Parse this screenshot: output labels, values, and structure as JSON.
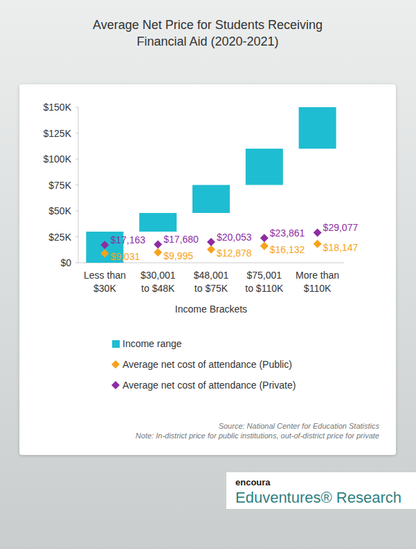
{
  "chart_data": {
    "type": "bar",
    "title": "Average Net Price for Students Receiving\nFinancial Aid (2020-2021)",
    "x_label": "Income Brackets",
    "categories": [
      "Less than\n$30K",
      "$30,001\nto $48K",
      "$48,001\nto $75K",
      "$75,001\nto $110K",
      "More than\n$110K"
    ],
    "ylim": [
      0,
      150000
    ],
    "yticks": [
      {
        "value": 0,
        "label": "$0"
      },
      {
        "value": 25000,
        "label": "$25K"
      },
      {
        "value": 50000,
        "label": "$50K"
      },
      {
        "value": 75000,
        "label": "$75K"
      },
      {
        "value": 100000,
        "label": "$100K"
      },
      {
        "value": 125000,
        "label": "$125K"
      },
      {
        "value": 150000,
        "label": "$150K"
      }
    ],
    "grid": false,
    "series": [
      {
        "name": "Income range",
        "type": "bar",
        "color": "#1fbdd1",
        "low": [
          0,
          30001,
          48001,
          75001,
          110000
        ],
        "values": [
          30000,
          48000,
          75000,
          110000,
          150000
        ]
      },
      {
        "name": "Average net cost of attendance (Public)",
        "type": "scatter",
        "color": "#f7a21b",
        "marker": "diamond",
        "data_labels": true,
        "values": [
          9031,
          9995,
          12878,
          16132,
          18147
        ],
        "value_labels": [
          "$9,031",
          "$9,995",
          "$12,878",
          "$16,132",
          "$18,147"
        ]
      },
      {
        "name": "Average net cost of attendance (Private)",
        "type": "scatter",
        "color": "#8e2ca3",
        "marker": "diamond",
        "data_labels": true,
        "values": [
          17163,
          17680,
          20053,
          23861,
          29077
        ],
        "value_labels": [
          "$17,163",
          "$17,680",
          "$20,053",
          "$23,861",
          "$29,077"
        ]
      }
    ],
    "annotations": [
      "Source: National Center for Education Statistics",
      "Note: In-district price for public institutions, out-of-district price for private"
    ],
    "brand": [
      "encoura",
      "Eduventures® Research"
    ]
  }
}
